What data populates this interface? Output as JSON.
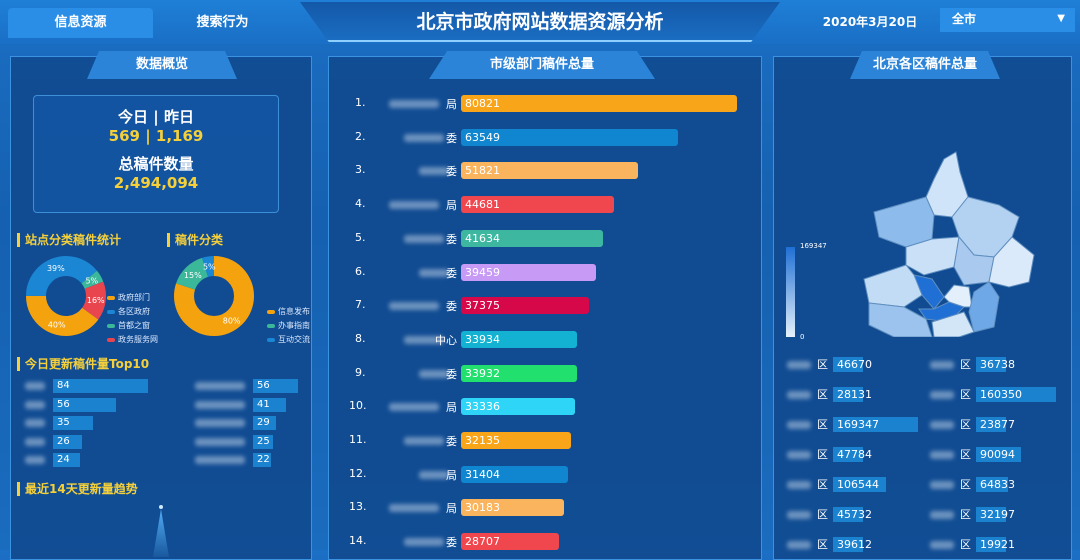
{
  "header": {
    "tabs": [
      {
        "label": "信息资源",
        "active": true
      },
      {
        "label": "搜索行为",
        "active": false
      }
    ],
    "title": "北京市政府网站数据资源分析",
    "date": "2020年3月20日",
    "region_select": "全市"
  },
  "overview": {
    "title": "数据概览",
    "today_yesterday_label": "今日 | 昨日",
    "today_yesterday_value": "569 | 1,169",
    "total_label": "总稿件数量",
    "total_value": "2,494,094"
  },
  "site_category": {
    "title": "站点分类稿件统计",
    "slices": [
      {
        "label": "政府部门",
        "value": 40,
        "pct": "40%",
        "color": "#f5a20f"
      },
      {
        "label": "各区政府",
        "value": 39,
        "pct": "39%",
        "color": "#1a86d4"
      },
      {
        "label": "首都之窗",
        "value": 5,
        "pct": "5%",
        "color": "#3bb79a"
      },
      {
        "label": "政务服务网",
        "value": 16,
        "pct": "16%",
        "color": "#e8454f"
      }
    ]
  },
  "doc_category": {
    "title": "稿件分类",
    "slices": [
      {
        "label": "信息发布",
        "value": 80,
        "pct": "80%",
        "color": "#f5a20f"
      },
      {
        "label": "办事指南",
        "value": 15,
        "pct": "15%",
        "color": "#3bb79a"
      },
      {
        "label": "互动交流",
        "value": 5,
        "pct": "5%",
        "color": "#1a86d4"
      }
    ]
  },
  "top10": {
    "title": "今日更新稿件量Top10",
    "left": [
      84,
      56,
      35,
      26,
      24
    ],
    "right": [
      56,
      41,
      29,
      25,
      22
    ]
  },
  "trend": {
    "title": "最近14天更新量趋势"
  },
  "departments": {
    "title": "市级部门稿件总量",
    "rows": [
      {
        "rank": "1.",
        "suffix": "局",
        "value": 80821,
        "color": "#f9a51a"
      },
      {
        "rank": "2.",
        "suffix": "委",
        "value": 63549,
        "color": "#0f86cf"
      },
      {
        "rank": "3.",
        "suffix": "委",
        "value": 51821,
        "color": "#fbb45e"
      },
      {
        "rank": "4.",
        "suffix": "局",
        "value": 44681,
        "color": "#f0474f"
      },
      {
        "rank": "5.",
        "suffix": "委",
        "value": 41634,
        "color": "#3db7a0"
      },
      {
        "rank": "6.",
        "suffix": "委",
        "value": 39459,
        "color": "#c69af5"
      },
      {
        "rank": "7.",
        "suffix": "委",
        "value": 37375,
        "color": "#d6084a"
      },
      {
        "rank": "8.",
        "suffix": "中心",
        "value": 33934,
        "color": "#13b2d2"
      },
      {
        "rank": "9.",
        "suffix": "委",
        "value": 33932,
        "color": "#22e06e"
      },
      {
        "rank": "10.",
        "suffix": "局",
        "value": 33336,
        "color": "#2fd5f7"
      },
      {
        "rank": "11.",
        "suffix": "委",
        "value": 32135,
        "color": "#f9a51a"
      },
      {
        "rank": "12.",
        "suffix": "局",
        "value": 31404,
        "color": "#0f86cf"
      },
      {
        "rank": "13.",
        "suffix": "局",
        "value": 30183,
        "color": "#fbb45e"
      },
      {
        "rank": "14.",
        "suffix": "委",
        "value": 28707,
        "color": "#f0474f"
      }
    ]
  },
  "districts": {
    "title": "北京各区稿件总量",
    "legend_max": "169347",
    "legend_min": "0",
    "left": [
      46670,
      28131,
      169347,
      47784,
      106544,
      45732,
      39612
    ],
    "right": [
      36738,
      160350,
      23877,
      90094,
      64833,
      32197,
      19921
    ],
    "suffix": "区"
  }
}
